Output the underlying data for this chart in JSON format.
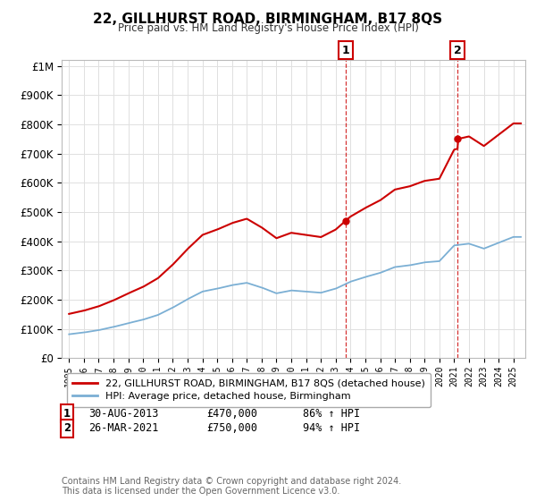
{
  "title": "22, GILLHURST ROAD, BIRMINGHAM, B17 8QS",
  "subtitle": "Price paid vs. HM Land Registry's House Price Index (HPI)",
  "legend_line1": "22, GILLHURST ROAD, BIRMINGHAM, B17 8QS (detached house)",
  "legend_line2": "HPI: Average price, detached house, Birmingham",
  "sale1_date": "30-AUG-2013",
  "sale1_price": "£470,000",
  "sale1_hpi": "86% ↑ HPI",
  "sale2_date": "26-MAR-2021",
  "sale2_price": "£750,000",
  "sale2_hpi": "94% ↑ HPI",
  "footer": "Contains HM Land Registry data © Crown copyright and database right 2024.\nThis data is licensed under the Open Government Licence v3.0.",
  "red_color": "#cc0000",
  "blue_color": "#7bafd4",
  "background_color": "#ffffff",
  "grid_color": "#e0e0e0",
  "sale1_year": 2013.67,
  "sale1_value": 470000,
  "sale2_year": 2021.23,
  "sale2_value": 750000,
  "hpi_years": [
    1995,
    1996,
    1997,
    1998,
    1999,
    2000,
    2001,
    2002,
    2003,
    2004,
    2005,
    2006,
    2007,
    2008,
    2009,
    2010,
    2011,
    2012,
    2013,
    2014,
    2015,
    2016,
    2017,
    2018,
    2019,
    2020,
    2021,
    2022,
    2023,
    2024,
    2025
  ],
  "hpi_values": [
    82000,
    88000,
    96000,
    107000,
    120000,
    132000,
    148000,
    173000,
    202000,
    228000,
    238000,
    250000,
    258000,
    242000,
    222000,
    232000,
    228000,
    224000,
    238000,
    262000,
    278000,
    292000,
    312000,
    318000,
    328000,
    332000,
    386000,
    392000,
    375000,
    395000,
    415000
  ],
  "ylim_max": 1000000,
  "xmin": 1994.5,
  "xmax": 2025.8
}
